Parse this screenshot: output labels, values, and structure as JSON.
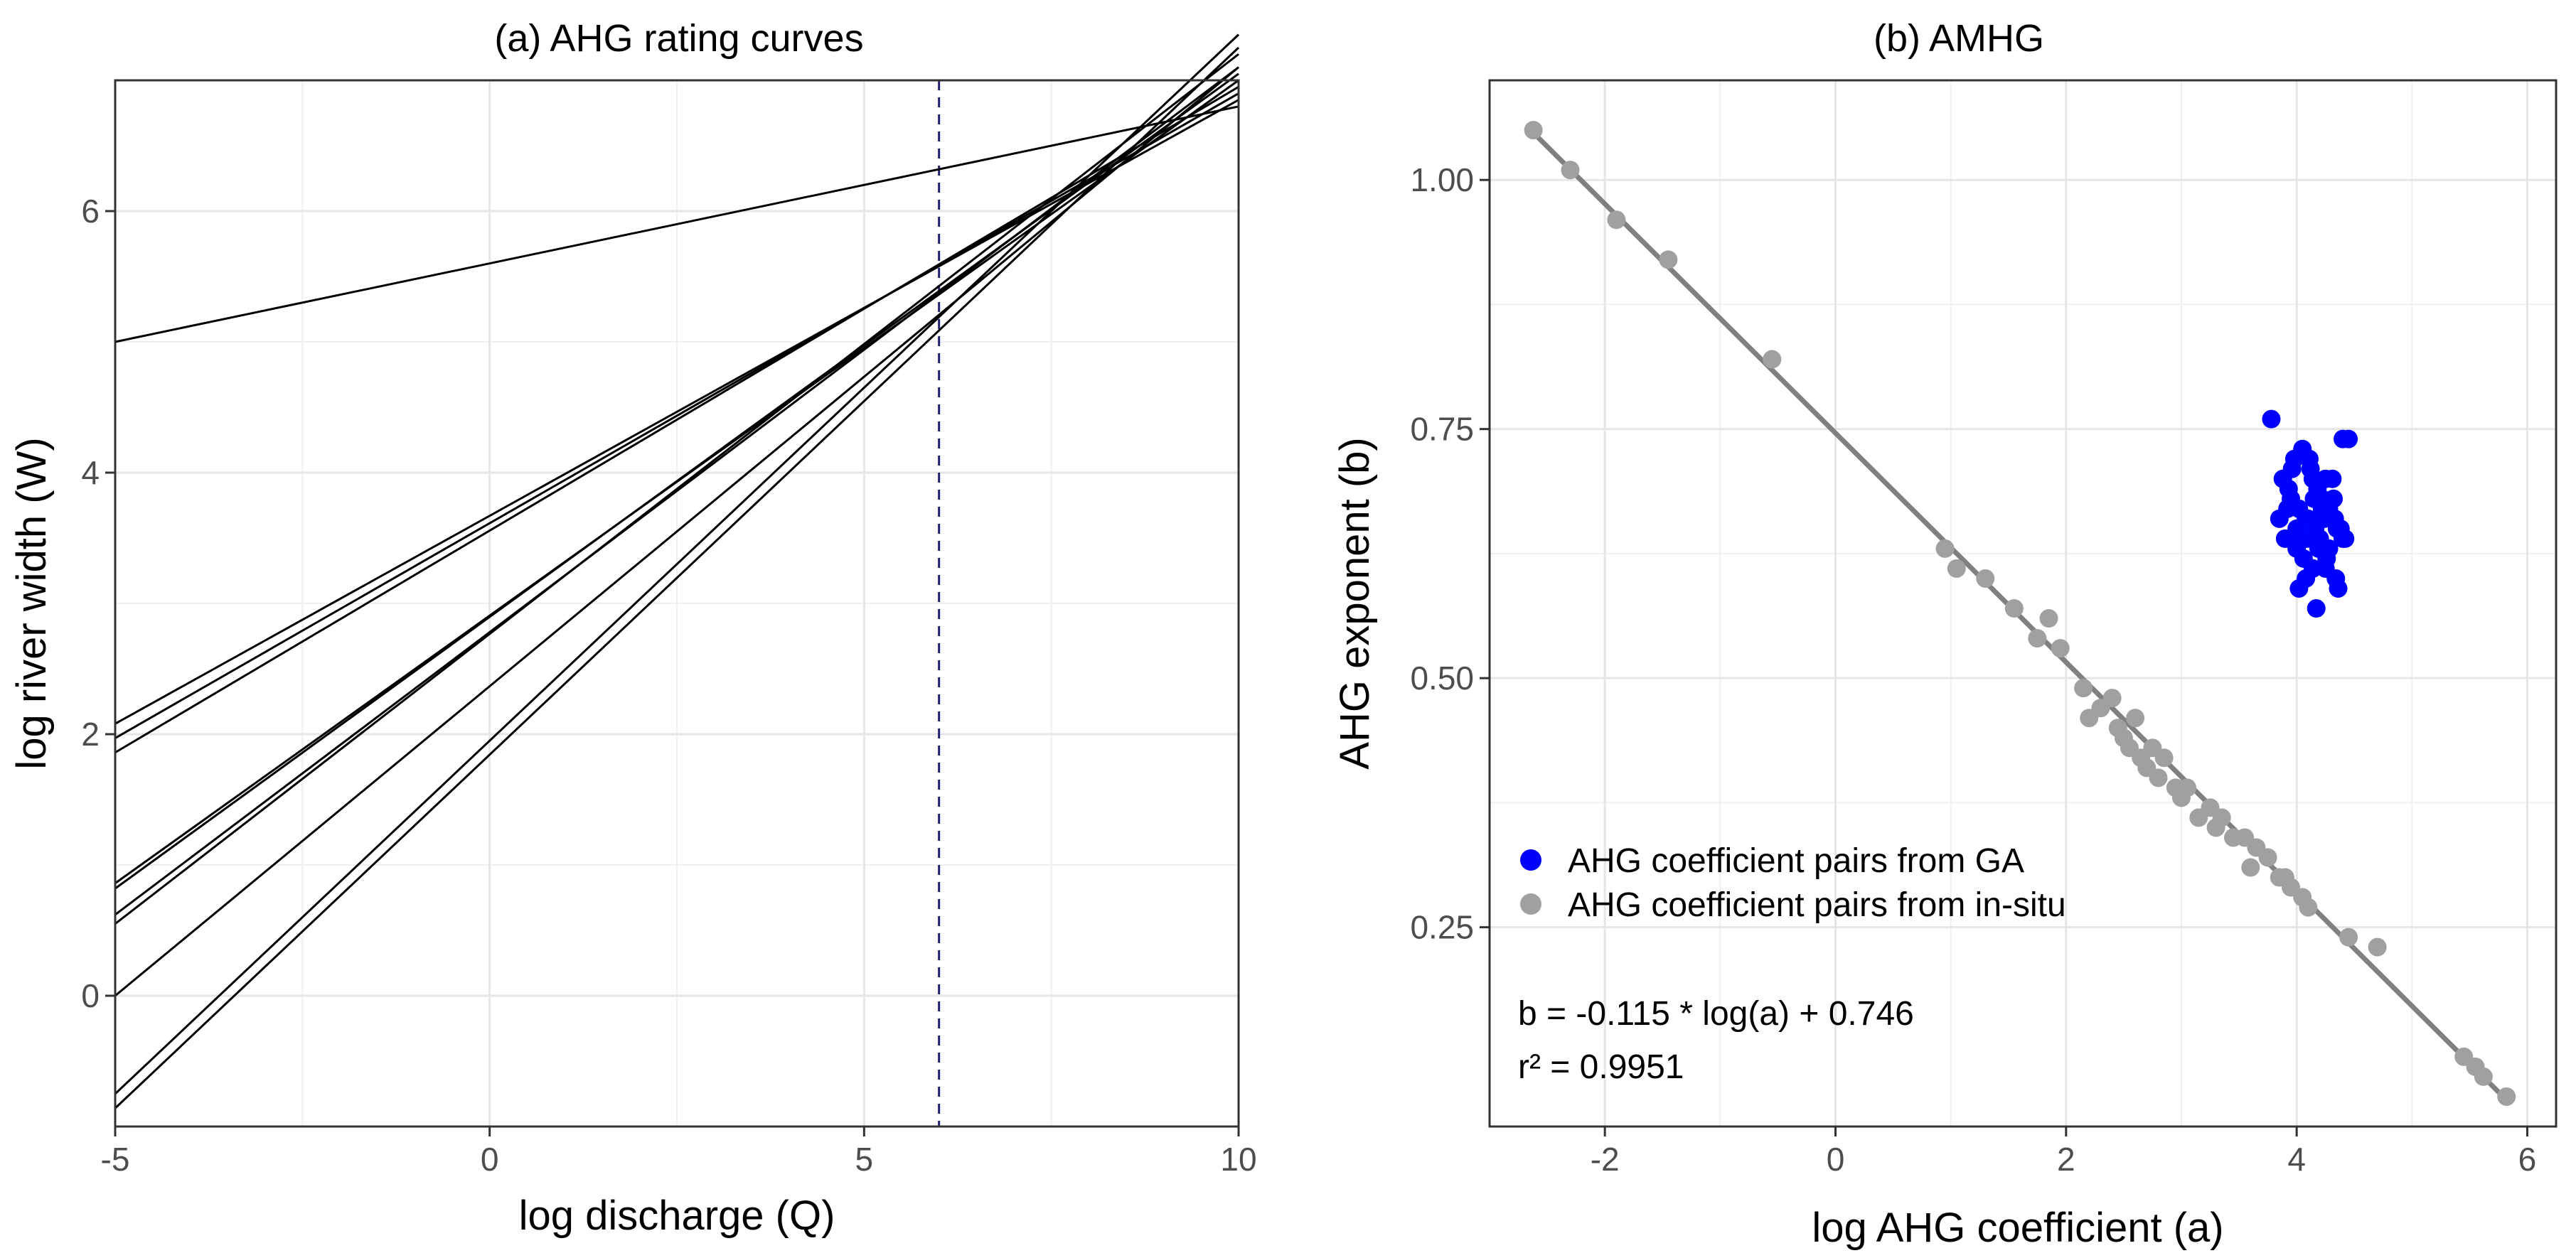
{
  "chart_data": [
    {
      "type": "line",
      "title": "(a) AHG rating curves",
      "xlabel": "log discharge (Q)",
      "ylabel": "log river width (W)",
      "xlim": [
        -5,
        10
      ],
      "ylim": [
        -1,
        7
      ],
      "x_ticks": [
        -5,
        0,
        5,
        10
      ],
      "x_tick_labels": [
        "-5",
        "0",
        "5",
        "10"
      ],
      "y_ticks": [
        0,
        2,
        4,
        6
      ],
      "y_tick_labels": [
        "0",
        "2",
        "4",
        "6"
      ],
      "grid": true,
      "vlines": [
        {
          "x": 6,
          "style": "dashed",
          "color": "#1f1f6e"
        },
        {
          "x": 10,
          "style": "dashed",
          "color": "#1f1f6e"
        }
      ],
      "series": [
        {
          "x": [
            -5,
            10
          ],
          "values": [
            5.0,
            6.8
          ]
        },
        {
          "x": [
            -5,
            10
          ],
          "values": [
            2.08,
            6.85
          ]
        },
        {
          "x": [
            -5,
            10
          ],
          "values": [
            1.97,
            6.9
          ]
        },
        {
          "x": [
            -5,
            10
          ],
          "values": [
            1.86,
            6.95
          ]
        },
        {
          "x": [
            -5,
            10
          ],
          "values": [
            0.86,
            7.0
          ]
        },
        {
          "x": [
            -5,
            10
          ],
          "values": [
            0.82,
            7.05
          ]
        },
        {
          "x": [
            -5,
            10
          ],
          "values": [
            0.62,
            7.1
          ]
        },
        {
          "x": [
            -5,
            10
          ],
          "values": [
            0.55,
            7.2
          ]
        },
        {
          "x": [
            -5,
            10
          ],
          "values": [
            0.0,
            7.1
          ]
        },
        {
          "x": [
            -5,
            10
          ],
          "values": [
            -0.75,
            7.35
          ]
        },
        {
          "x": [
            -5,
            10
          ],
          "values": [
            -0.86,
            7.25
          ]
        }
      ]
    },
    {
      "type": "scatter",
      "title": "(b) AMHG",
      "xlabel": "log AHG coefficient (a)",
      "ylabel": "AHG exponent (b)",
      "xlim": [
        -3,
        6.25
      ],
      "ylim": [
        0.05,
        1.1
      ],
      "x_ticks": [
        -2,
        0,
        2,
        4,
        6
      ],
      "x_tick_labels": [
        "-2",
        "0",
        "2",
        "4",
        "6"
      ],
      "y_ticks": [
        0.25,
        0.5,
        0.75,
        1.0
      ],
      "y_tick_labels": [
        "0.25",
        "0.50",
        "0.75",
        "1.00"
      ],
      "grid": true,
      "legend_position": "bottom-left",
      "annotation_lines": [
        "b = -0.115 * log(a) + 0.746",
        "r² = 0.9951"
      ],
      "fit_line": {
        "slope": -0.115,
        "intercept": 0.746,
        "x_range": [
          -2.65,
          5.85
        ],
        "color": "#808080"
      },
      "series": [
        {
          "name": "AHG coefficient pairs from GA",
          "color": "#0000ff",
          "x": [
            3.78,
            3.88,
            3.98,
            4.05,
            4.12,
            4.18,
            4.25,
            4.32,
            4.4,
            4.45,
            3.95,
            4.02,
            4.1,
            4.15,
            4.22,
            4.3,
            4.35,
            3.9,
            4.0,
            4.08,
            4.2,
            4.28,
            4.38,
            4.42,
            3.85,
            3.93,
            4.06,
            4.14,
            4.26,
            4.34,
            4.05,
            4.16,
            4.24,
            3.96,
            4.11,
            4.31,
            4.0,
            4.19,
            4.28,
            4.08,
            4.36,
            3.92,
            4.22,
            4.14,
            4.02,
            4.25,
            4.17,
            4.09,
            4.33,
            4.4
          ],
          "y": [
            0.76,
            0.7,
            0.72,
            0.73,
            0.71,
            0.69,
            0.7,
            0.68,
            0.74,
            0.74,
            0.68,
            0.67,
            0.66,
            0.68,
            0.67,
            0.66,
            0.65,
            0.64,
            0.65,
            0.66,
            0.64,
            0.63,
            0.65,
            0.64,
            0.66,
            0.69,
            0.62,
            0.61,
            0.62,
            0.6,
            0.64,
            0.65,
            0.66,
            0.71,
            0.72,
            0.7,
            0.63,
            0.63,
            0.67,
            0.6,
            0.59,
            0.67,
            0.68,
            0.7,
            0.59,
            0.61,
            0.57,
            0.64,
            0.66,
            0.64
          ]
        },
        {
          "name": "AHG coefficient pairs from in-situ",
          "color": "#a0a0a0",
          "x": [
            -2.62,
            -2.3,
            -1.9,
            -1.45,
            -0.55,
            0.95,
            1.05,
            1.3,
            1.55,
            1.75,
            1.85,
            1.95,
            2.15,
            2.3,
            2.4,
            2.5,
            2.55,
            2.6,
            2.65,
            2.7,
            2.75,
            2.85,
            2.95,
            3.05,
            3.15,
            3.25,
            3.35,
            3.45,
            3.55,
            3.65,
            3.75,
            3.85,
            3.95,
            4.05,
            4.1,
            4.45,
            4.7,
            5.45,
            5.55,
            5.62,
            5.82,
            2.2,
            2.45,
            2.8,
            3.0,
            3.3,
            3.6,
            3.9
          ],
          "y": [
            1.05,
            1.01,
            0.96,
            0.92,
            0.82,
            0.63,
            0.61,
            0.6,
            0.57,
            0.54,
            0.56,
            0.53,
            0.49,
            0.47,
            0.48,
            0.44,
            0.43,
            0.46,
            0.42,
            0.41,
            0.43,
            0.42,
            0.39,
            0.39,
            0.36,
            0.37,
            0.36,
            0.34,
            0.34,
            0.33,
            0.32,
            0.3,
            0.29,
            0.28,
            0.27,
            0.24,
            0.23,
            0.12,
            0.11,
            0.1,
            0.08,
            0.46,
            0.45,
            0.4,
            0.38,
            0.35,
            0.31,
            0.3
          ]
        }
      ]
    }
  ]
}
